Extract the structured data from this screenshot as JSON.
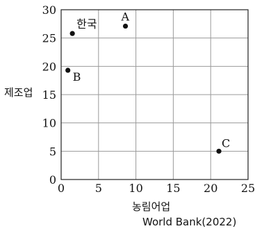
{
  "chart_data": {
    "type": "scatter",
    "xlabel": "농림어업",
    "ylabel": "제조업",
    "xlim": [
      0,
      25
    ],
    "ylim": [
      0,
      30
    ],
    "xticks": [
      "0",
      "5",
      "10",
      "15",
      "20",
      "25"
    ],
    "yticks": [
      "0",
      "5",
      "10",
      "15",
      "20",
      "25",
      "30"
    ],
    "grid": true,
    "points": [
      {
        "label": "한국",
        "x": 1.5,
        "y": 25.8
      },
      {
        "label": "A",
        "x": 8.6,
        "y": 27.1
      },
      {
        "label": "B",
        "x": 0.9,
        "y": 19.3
      },
      {
        "label": "C",
        "x": 21.1,
        "y": 5.0
      }
    ]
  },
  "source": "World Bank(2022)"
}
